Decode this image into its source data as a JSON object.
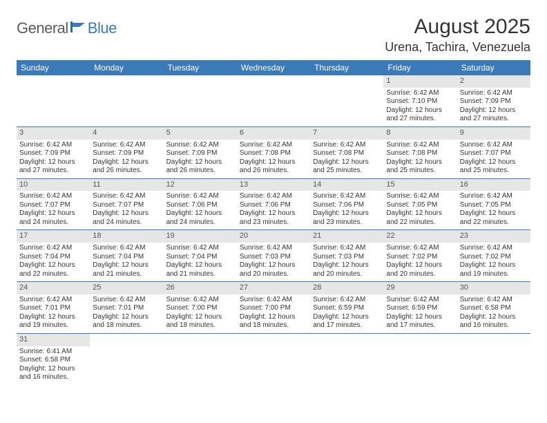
{
  "logo": {
    "part1": "General",
    "part2": "Blue"
  },
  "title": "August 2025",
  "location": "Urena, Tachira, Venezuela",
  "colors": {
    "header_bg": "#3a7ab8",
    "header_fg": "#ffffff",
    "daynum_bg": "#e6e6e6",
    "row_divider": "#3a7ab8",
    "logo_gray": "#5b5b5b",
    "logo_blue": "#3a7ab8"
  },
  "weekdays": [
    "Sunday",
    "Monday",
    "Tuesday",
    "Wednesday",
    "Thursday",
    "Friday",
    "Saturday"
  ],
  "weeks": [
    [
      null,
      null,
      null,
      null,
      null,
      {
        "n": "1",
        "sr": "6:42 AM",
        "ss": "7:10 PM",
        "dl": "12 hours and 27 minutes."
      },
      {
        "n": "2",
        "sr": "6:42 AM",
        "ss": "7:09 PM",
        "dl": "12 hours and 27 minutes."
      }
    ],
    [
      {
        "n": "3",
        "sr": "6:42 AM",
        "ss": "7:09 PM",
        "dl": "12 hours and 27 minutes."
      },
      {
        "n": "4",
        "sr": "6:42 AM",
        "ss": "7:09 PM",
        "dl": "12 hours and 26 minutes."
      },
      {
        "n": "5",
        "sr": "6:42 AM",
        "ss": "7:09 PM",
        "dl": "12 hours and 26 minutes."
      },
      {
        "n": "6",
        "sr": "6:42 AM",
        "ss": "7:08 PM",
        "dl": "12 hours and 26 minutes."
      },
      {
        "n": "7",
        "sr": "6:42 AM",
        "ss": "7:08 PM",
        "dl": "12 hours and 25 minutes."
      },
      {
        "n": "8",
        "sr": "6:42 AM",
        "ss": "7:08 PM",
        "dl": "12 hours and 25 minutes."
      },
      {
        "n": "9",
        "sr": "6:42 AM",
        "ss": "7:07 PM",
        "dl": "12 hours and 25 minutes."
      }
    ],
    [
      {
        "n": "10",
        "sr": "6:42 AM",
        "ss": "7:07 PM",
        "dl": "12 hours and 24 minutes."
      },
      {
        "n": "11",
        "sr": "6:42 AM",
        "ss": "7:07 PM",
        "dl": "12 hours and 24 minutes."
      },
      {
        "n": "12",
        "sr": "6:42 AM",
        "ss": "7:06 PM",
        "dl": "12 hours and 24 minutes."
      },
      {
        "n": "13",
        "sr": "6:42 AM",
        "ss": "7:06 PM",
        "dl": "12 hours and 23 minutes."
      },
      {
        "n": "14",
        "sr": "6:42 AM",
        "ss": "7:06 PM",
        "dl": "12 hours and 23 minutes."
      },
      {
        "n": "15",
        "sr": "6:42 AM",
        "ss": "7:05 PM",
        "dl": "12 hours and 22 minutes."
      },
      {
        "n": "16",
        "sr": "6:42 AM",
        "ss": "7:05 PM",
        "dl": "12 hours and 22 minutes."
      }
    ],
    [
      {
        "n": "17",
        "sr": "6:42 AM",
        "ss": "7:04 PM",
        "dl": "12 hours and 22 minutes."
      },
      {
        "n": "18",
        "sr": "6:42 AM",
        "ss": "7:04 PM",
        "dl": "12 hours and 21 minutes."
      },
      {
        "n": "19",
        "sr": "6:42 AM",
        "ss": "7:04 PM",
        "dl": "12 hours and 21 minutes."
      },
      {
        "n": "20",
        "sr": "6:42 AM",
        "ss": "7:03 PM",
        "dl": "12 hours and 20 minutes."
      },
      {
        "n": "21",
        "sr": "6:42 AM",
        "ss": "7:03 PM",
        "dl": "12 hours and 20 minutes."
      },
      {
        "n": "22",
        "sr": "6:42 AM",
        "ss": "7:02 PM",
        "dl": "12 hours and 20 minutes."
      },
      {
        "n": "23",
        "sr": "6:42 AM",
        "ss": "7:02 PM",
        "dl": "12 hours and 19 minutes."
      }
    ],
    [
      {
        "n": "24",
        "sr": "6:42 AM",
        "ss": "7:01 PM",
        "dl": "12 hours and 19 minutes."
      },
      {
        "n": "25",
        "sr": "6:42 AM",
        "ss": "7:01 PM",
        "dl": "12 hours and 18 minutes."
      },
      {
        "n": "26",
        "sr": "6:42 AM",
        "ss": "7:00 PM",
        "dl": "12 hours and 18 minutes."
      },
      {
        "n": "27",
        "sr": "6:42 AM",
        "ss": "7:00 PM",
        "dl": "12 hours and 18 minutes."
      },
      {
        "n": "28",
        "sr": "6:42 AM",
        "ss": "6:59 PM",
        "dl": "12 hours and 17 minutes."
      },
      {
        "n": "29",
        "sr": "6:42 AM",
        "ss": "6:59 PM",
        "dl": "12 hours and 17 minutes."
      },
      {
        "n": "30",
        "sr": "6:42 AM",
        "ss": "6:58 PM",
        "dl": "12 hours and 16 minutes."
      }
    ],
    [
      {
        "n": "31",
        "sr": "6:41 AM",
        "ss": "6:58 PM",
        "dl": "12 hours and 16 minutes."
      },
      null,
      null,
      null,
      null,
      null,
      null
    ]
  ],
  "labels": {
    "sunrise": "Sunrise:",
    "sunset": "Sunset:",
    "daylight": "Daylight:"
  }
}
